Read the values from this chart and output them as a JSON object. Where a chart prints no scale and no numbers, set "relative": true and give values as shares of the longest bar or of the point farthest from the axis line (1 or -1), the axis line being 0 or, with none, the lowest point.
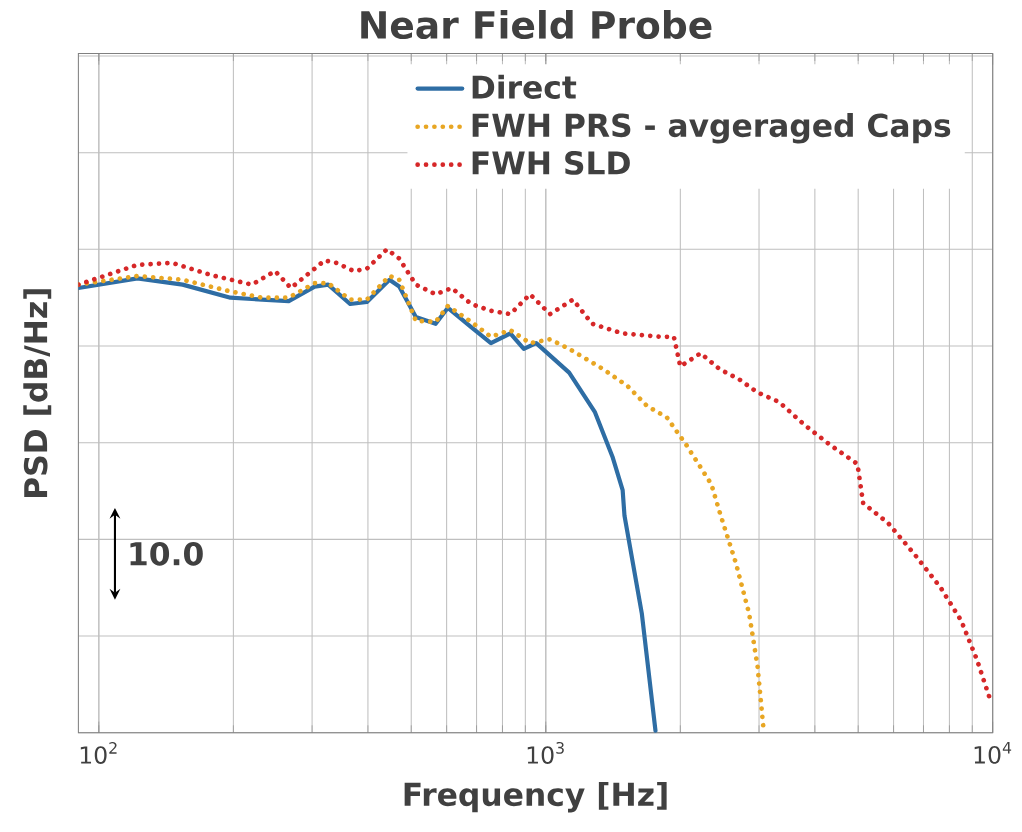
{
  "chart_data": {
    "type": "line",
    "title": "Near Field Probe",
    "xlabel": "Frequency [Hz]",
    "ylabel": "PSD [dB/Hz]",
    "relative": true,
    "log": "x",
    "grid": true,
    "legend": "top right",
    "xlim": [
      90,
      10000
    ],
    "xticks": [
      {
        "value": 100,
        "label": "10$^{2}$"
      },
      {
        "value": 1000,
        "label": "10$^{3}$"
      },
      {
        "value": 10000,
        "label": "10$^{4}$"
      }
    ],
    "annotations": [
      "10.0"
    ],
    "series": [
      {
        "name": "Direct",
        "color": "#2e6da4",
        "line_style": "solid",
        "x": [
          90,
          122,
          154,
          197,
          232,
          266,
          304,
          326,
          365,
          398,
          447,
          470,
          512,
          567,
          604,
          681,
          754,
          833,
          893,
          952,
          1128,
          1287,
          1410,
          1486,
          1500,
          1640,
          1760
        ],
        "values": [
          0.92,
          0.94,
          0.927,
          0.9,
          0.896,
          0.893,
          0.923,
          0.927,
          0.887,
          0.891,
          0.937,
          0.923,
          0.86,
          0.846,
          0.879,
          0.839,
          0.806,
          0.826,
          0.794,
          0.806,
          0.745,
          0.664,
          0.571,
          0.502,
          0.449,
          0.247,
          0.004
        ]
      },
      {
        "name": "FWH PRS - avgeraged Caps",
        "color": "#e8a623",
        "line_style": "dotted",
        "x": [
          90,
          122,
          154,
          197,
          232,
          266,
          304,
          326,
          365,
          398,
          447,
          470,
          512,
          567,
          604,
          681,
          754,
          833,
          922,
          1022,
          1128,
          1340,
          1525,
          1685,
          1867,
          2064,
          2347,
          2463,
          2661,
          2850,
          2977,
          3070
        ],
        "values": [
          0.927,
          0.945,
          0.937,
          0.913,
          0.9,
          0.9,
          0.93,
          0.93,
          0.896,
          0.896,
          0.945,
          0.937,
          0.852,
          0.85,
          0.883,
          0.85,
          0.819,
          0.833,
          0.806,
          0.814,
          0.794,
          0.753,
          0.717,
          0.676,
          0.652,
          0.595,
          0.514,
          0.449,
          0.352,
          0.247,
          0.138,
          0.008
        ]
      },
      {
        "name": "FWH SLD",
        "color": "#d62728",
        "line_style": "dotted",
        "x": [
          90,
          122,
          146,
          178,
          220,
          248,
          269,
          320,
          340,
          372,
          398,
          441,
          470,
          512,
          567,
          616,
          681,
          754,
          833,
          922,
          1022,
          1150,
          1270,
          1486,
          1815,
          1935,
          2000,
          2220,
          2450,
          2710,
          2977,
          3330,
          3790,
          4320,
          4980,
          5130,
          5830,
          6700,
          7650,
          8500,
          9220,
          9900
        ],
        "values": [
          0.927,
          0.968,
          0.972,
          0.947,
          0.927,
          0.955,
          0.92,
          0.977,
          0.972,
          0.955,
          0.96,
          1.0,
          0.981,
          0.927,
          0.907,
          0.92,
          0.887,
          0.873,
          0.866,
          0.907,
          0.866,
          0.896,
          0.846,
          0.826,
          0.819,
          0.819,
          0.758,
          0.785,
          0.752,
          0.731,
          0.704,
          0.684,
          0.637,
          0.596,
          0.556,
          0.475,
          0.434,
          0.368,
          0.3,
          0.232,
          0.151,
          0.065
        ]
      }
    ]
  }
}
